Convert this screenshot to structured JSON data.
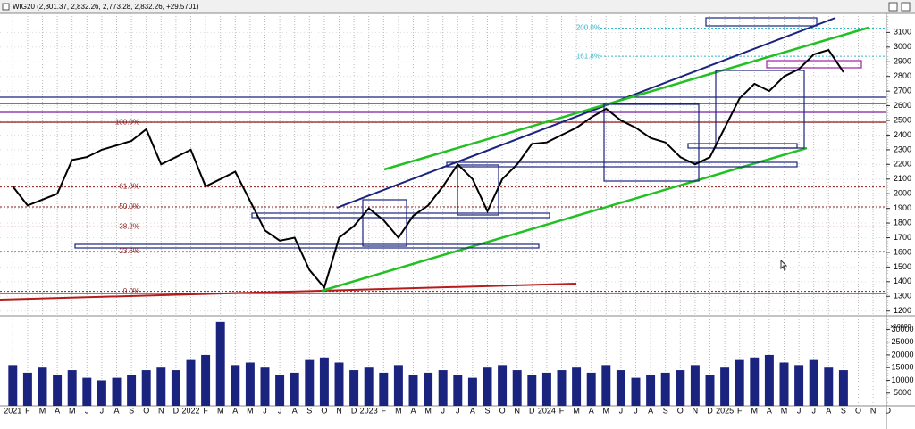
{
  "chart_data": {
    "type": "line",
    "title": "WIG20 (2,801.37, 2,832.26, 2,773.28, 2,832.26, +29.5701)",
    "categories": [
      "2021",
      "F",
      "M",
      "A",
      "M",
      "J",
      "J",
      "A",
      "S",
      "O",
      "N",
      "D",
      "2022",
      "F",
      "M",
      "A",
      "M",
      "J",
      "J",
      "A",
      "S",
      "O",
      "N",
      "D",
      "2023",
      "F",
      "M",
      "A",
      "M",
      "J",
      "J",
      "A",
      "S",
      "O",
      "N",
      "D",
      "2024",
      "F",
      "M",
      "A",
      "M",
      "J",
      "J",
      "A",
      "S",
      "O",
      "N",
      "D",
      "2025",
      "F",
      "M",
      "A",
      "M",
      "J",
      "J",
      "A",
      "S",
      "O",
      "N",
      "D"
    ],
    "series": [
      {
        "name": "WIG20",
        "color": "#000000",
        "values": [
          2050,
          1920,
          1960,
          2000,
          2230,
          2250,
          2300,
          2330,
          2360,
          2440,
          2200,
          2250,
          2300,
          2050,
          2100,
          2150,
          1950,
          1750,
          1680,
          1700,
          1480,
          1360,
          1700,
          1780,
          1900,
          1820,
          1700,
          1850,
          1920,
          2050,
          2200,
          2100,
          1880,
          2100,
          2200,
          2340,
          2350,
          2400,
          2450,
          2520,
          2580,
          2500,
          2450,
          2380,
          2350,
          2250,
          2200,
          2250,
          2450,
          2650,
          2750,
          2700,
          2800,
          2850,
          2950,
          2980,
          2830,
          null,
          null,
          null
        ]
      }
    ],
    "ylim": [
      1180,
      3230
    ],
    "yticks": [
      1200,
      1300,
      1400,
      1500,
      1600,
      1700,
      1800,
      1900,
      2000,
      2100,
      2200,
      2300,
      2400,
      2500,
      2600,
      2700,
      2800,
      2900,
      3000,
      3100
    ],
    "grid": true,
    "fib_levels": {
      "color": "#8b1a1a",
      "levels": [
        {
          "label": "100.0%",
          "value": 2487
        },
        {
          "label": "61.8%",
          "value": 2046
        },
        {
          "label": "50.0%",
          "value": 1910
        },
        {
          "label": "38.2%",
          "value": 1774
        },
        {
          "label": "23.6%",
          "value": 1606
        },
        {
          "label": "0.0%",
          "value": 1334
        }
      ]
    },
    "fib_extensions": {
      "color": "#30b8c8",
      "levels": [
        {
          "label": "200.0%",
          "value": 3130
        },
        {
          "label": "161.8%",
          "value": 2937
        }
      ]
    },
    "volume": {
      "color": "#1a237e",
      "multiplier": "x10000",
      "values": [
        16000,
        13000,
        15000,
        12000,
        14000,
        11000,
        10000,
        11000,
        12000,
        14000,
        15000,
        14000,
        18000,
        20000,
        33000,
        16000,
        17000,
        15000,
        12000,
        13000,
        18000,
        19000,
        17000,
        14000,
        15000,
        13000,
        16000,
        12000,
        13000,
        14000,
        12000,
        11000,
        15000,
        16000,
        14000,
        12000,
        13000,
        14000,
        15000,
        13000,
        16000,
        14000,
        11000,
        12000,
        13000,
        14000,
        16000,
        12000,
        15000,
        18000,
        19000,
        20000,
        17000,
        16000,
        18000,
        15000,
        14000,
        null,
        null,
        null
      ],
      "ylim": [
        0,
        34000
      ],
      "yticks": [
        5000,
        10000,
        15000,
        20000,
        25000,
        30000
      ]
    }
  }
}
